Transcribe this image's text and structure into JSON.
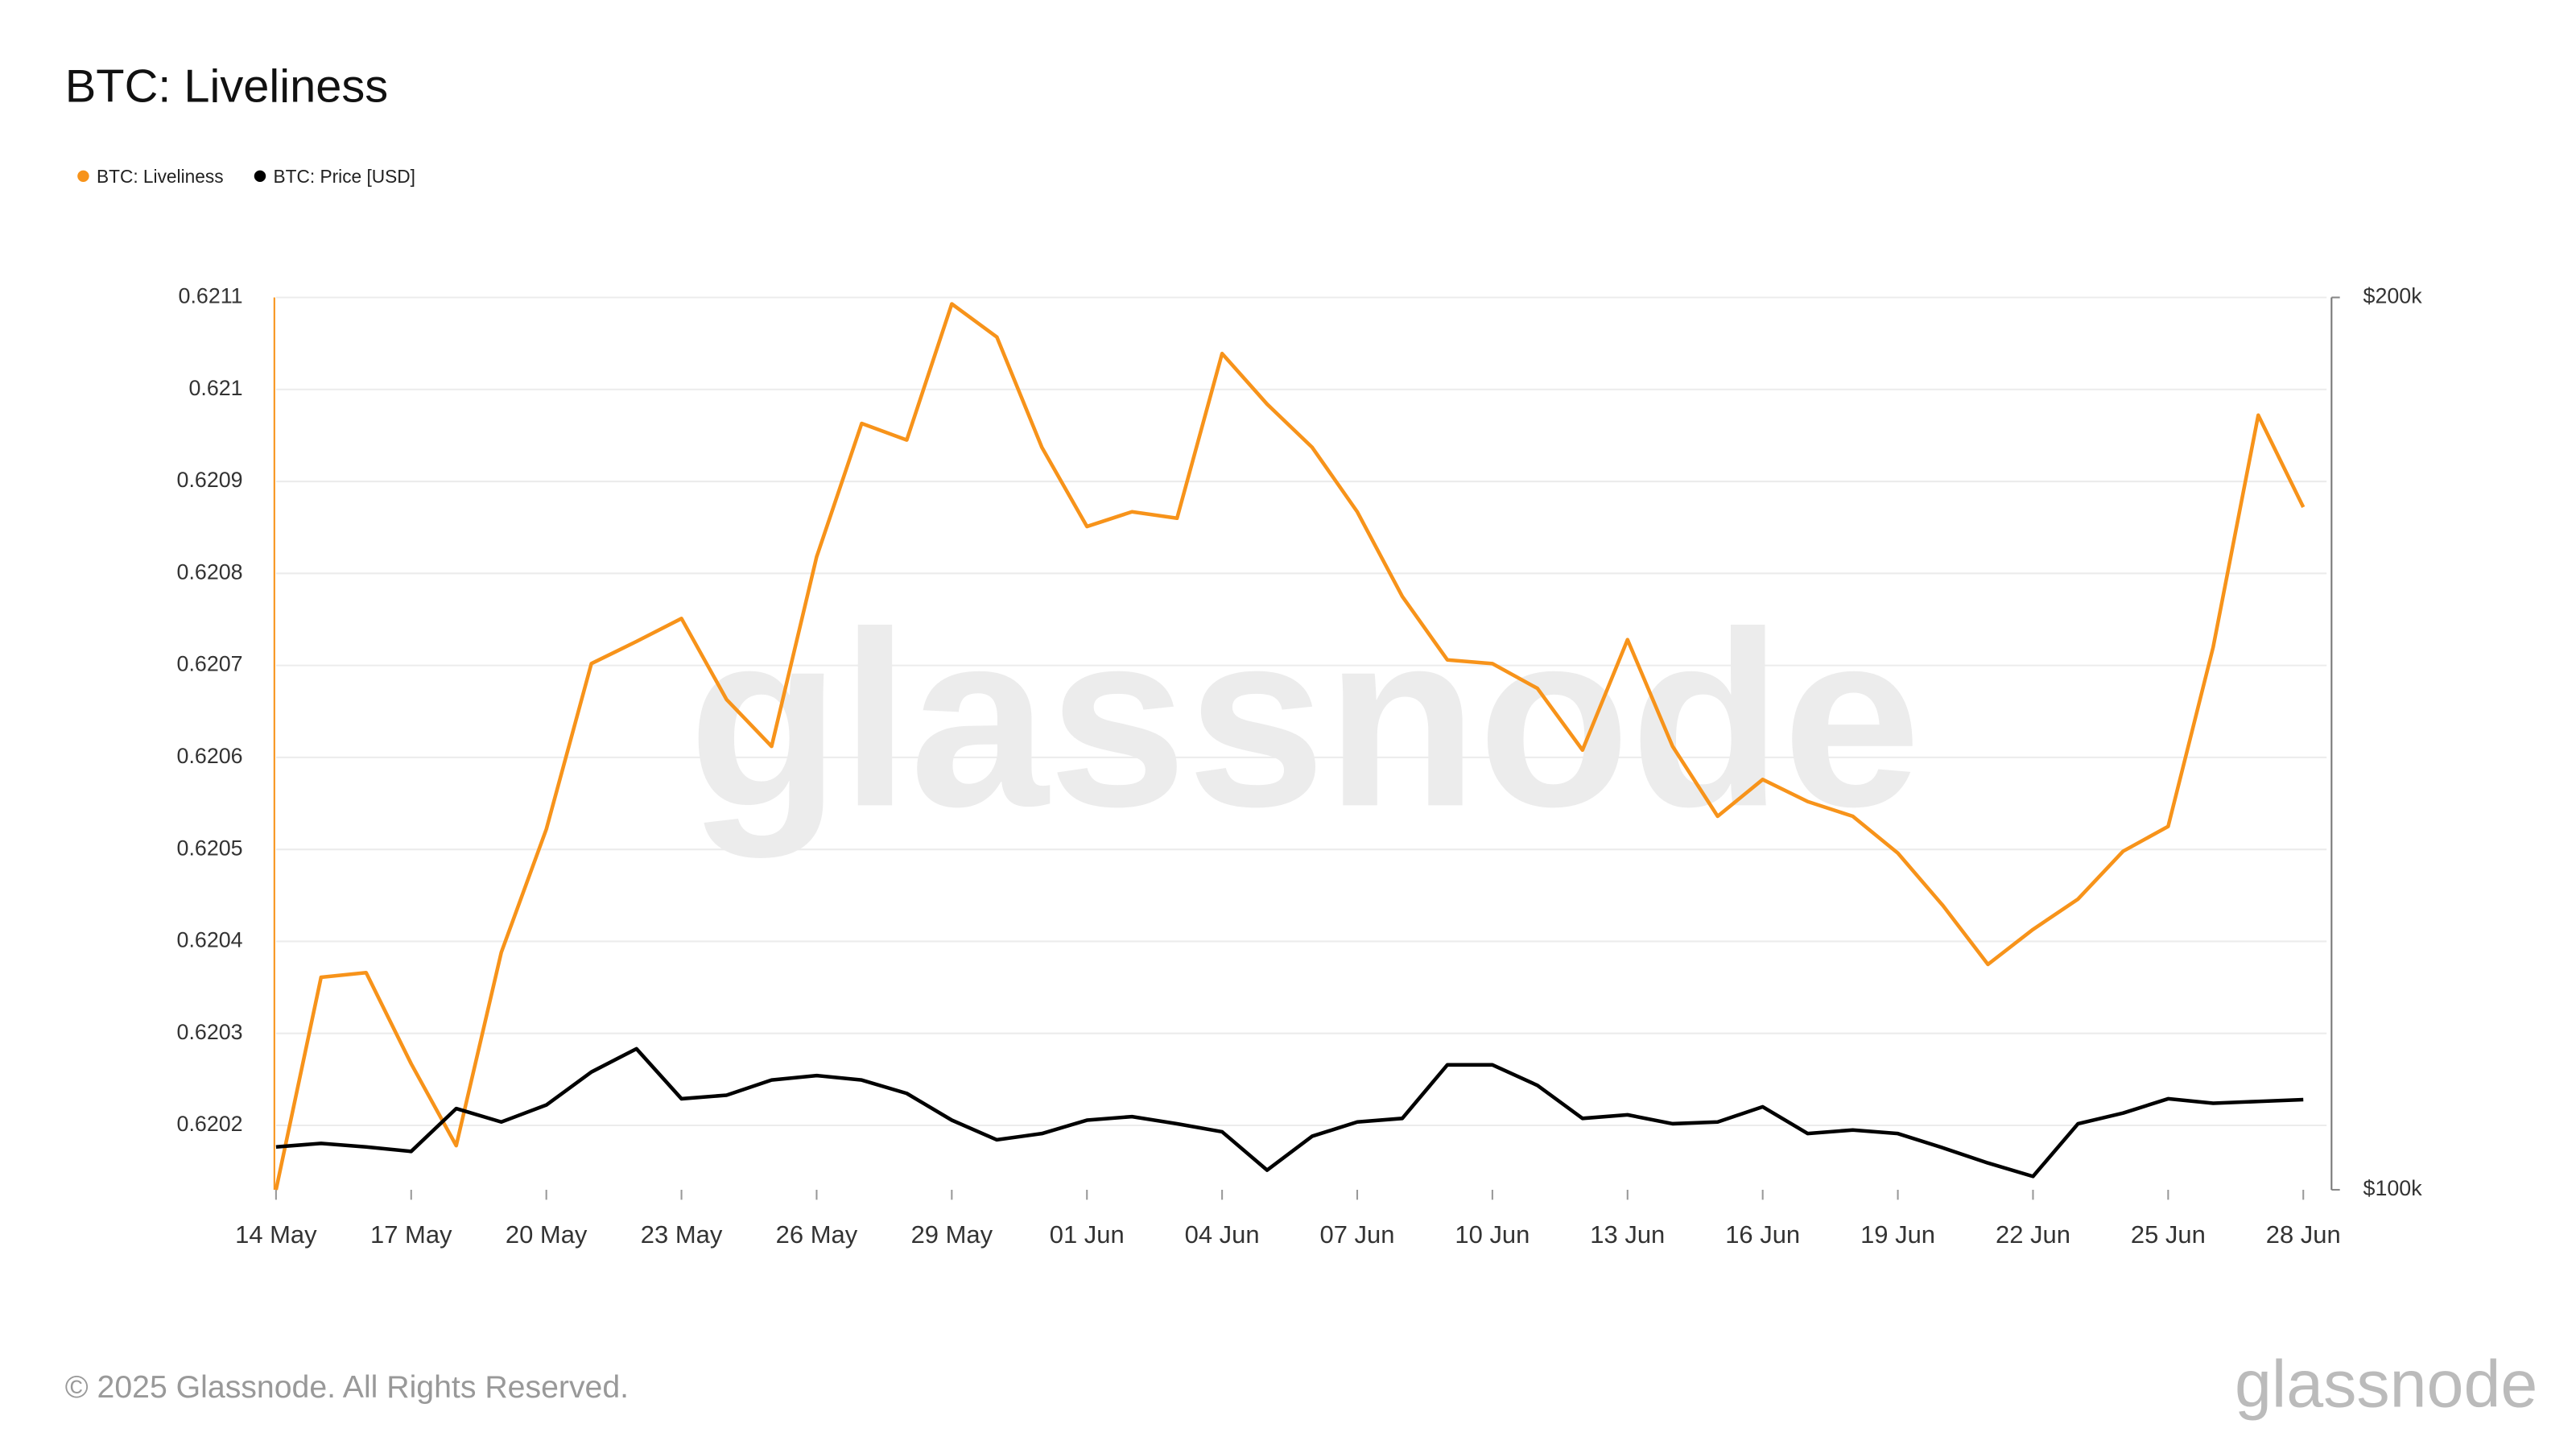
{
  "chart_data": {
    "type": "line",
    "title": "BTC: Liveliness",
    "watermark": "glassnode",
    "footer": "© 2025 Glassnode. All Rights Reserved.",
    "logo": "glassnode",
    "categories": [
      "14 May",
      null,
      null,
      "17 May",
      null,
      null,
      "20 May",
      null,
      null,
      "23 May",
      null,
      null,
      "26 May",
      null,
      null,
      "29 May",
      null,
      null,
      "01 Jun",
      null,
      null,
      "04 Jun",
      null,
      null,
      "07 Jun",
      null,
      null,
      "10 Jun",
      null,
      null,
      "13 Jun",
      null,
      null,
      "16 Jun",
      null,
      null,
      "19 Jun",
      null,
      null,
      "22 Jun",
      null,
      null,
      "25 Jun",
      null,
      null,
      "28 Jun"
    ],
    "series": [
      {
        "name": "BTC: Liveliness",
        "color": "#f7931a",
        "values": [
          0.62013,
          0.620361,
          0.620366,
          0.620267,
          0.620178,
          0.620388,
          0.620522,
          0.620702,
          0.620726,
          0.620751,
          0.620663,
          0.620612,
          0.620818,
          0.620963,
          0.620945,
          0.621093,
          0.621057,
          0.620937,
          0.620851,
          0.620867,
          0.62086,
          0.621039,
          0.620984,
          0.620937,
          0.620867,
          0.620775,
          0.620706,
          0.620702,
          0.620675,
          0.620608,
          0.620728,
          0.620612,
          0.620536,
          0.620576,
          0.620552,
          0.620536,
          0.620496,
          0.620439,
          0.620375,
          0.620413,
          0.620446,
          0.620498,
          0.620525,
          0.62072,
          0.620972,
          0.620872
        ]
      },
      {
        "name": "BTC: Price [USD]",
        "color": "#000000",
        "axis": "y2",
        "values": [
          104800,
          105200,
          104800,
          104300,
          109100,
          107600,
          109500,
          113200,
          115800,
          110200,
          110600,
          112300,
          112800,
          112300,
          110800,
          107800,
          105600,
          106300,
          107800,
          108200,
          107400,
          106500,
          102200,
          106000,
          107600,
          108000,
          114000,
          114000,
          111700,
          108000,
          108400,
          107400,
          107600,
          109300,
          106300,
          106700,
          106300,
          104700,
          103000,
          101500,
          107400,
          108600,
          110200,
          109700,
          109900,
          110100
        ]
      }
    ],
    "ylim": [
      0.62013,
      0.6211
    ],
    "yticks": [
      0.6202,
      0.6203,
      0.6204,
      0.6205,
      0.6206,
      0.6207,
      0.6208,
      0.6209,
      0.621,
      0.6211
    ],
    "y2lim": [
      100000,
      200000
    ],
    "y2ticks": [
      {
        "value": 100000,
        "label": "$100k"
      },
      {
        "value": 200000,
        "label": "$200k"
      }
    ],
    "grid": true,
    "legend": "top-left"
  }
}
